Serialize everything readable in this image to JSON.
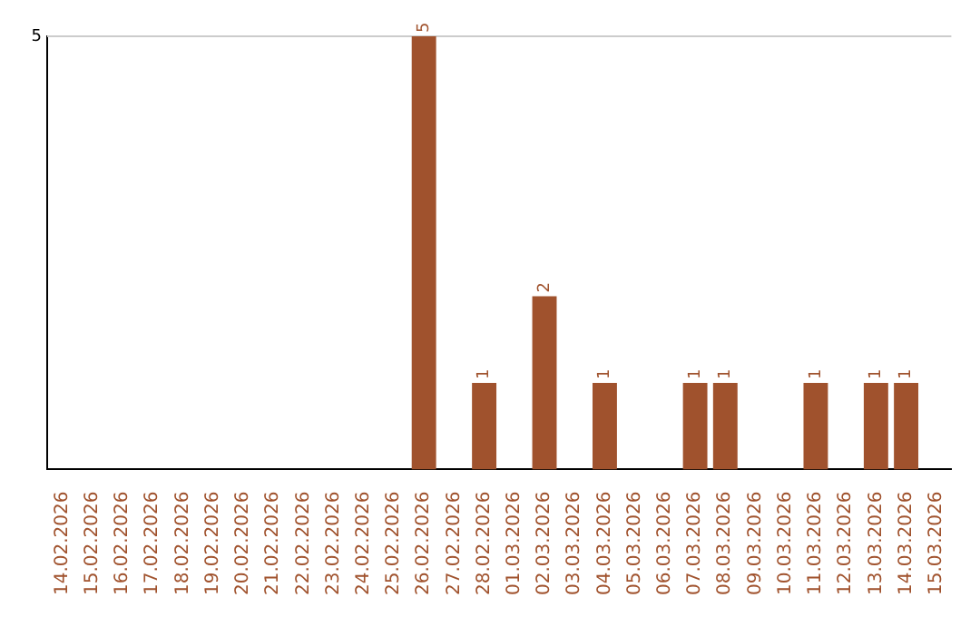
{
  "chart_data": {
    "type": "bar",
    "categories": [
      "14.02.2026",
      "15.02.2026",
      "16.02.2026",
      "17.02.2026",
      "18.02.2026",
      "19.02.2026",
      "20.02.2026",
      "21.02.2026",
      "22.02.2026",
      "23.02.2026",
      "24.02.2026",
      "25.02.2026",
      "26.02.2026",
      "27.02.2026",
      "28.02.2026",
      "01.03.2026",
      "02.03.2026",
      "03.03.2026",
      "04.03.2026",
      "05.03.2026",
      "06.03.2026",
      "07.03.2026",
      "08.03.2026",
      "09.03.2026",
      "10.03.2026",
      "11.03.2026",
      "12.03.2026",
      "13.03.2026",
      "14.03.2026",
      "15.03.2026"
    ],
    "values": [
      null,
      null,
      null,
      null,
      null,
      null,
      null,
      null,
      null,
      null,
      null,
      null,
      5,
      null,
      1,
      null,
      2,
      null,
      1,
      null,
      null,
      1,
      1,
      null,
      null,
      1,
      null,
      1,
      1,
      null
    ],
    "data_labels": true,
    "color": "#a0522d",
    "ylim": [
      0,
      5
    ],
    "ref_lines": [
      {
        "axis": "y",
        "value": 5,
        "color": "#cccccc"
      }
    ],
    "annotations": [
      "5"
    ]
  }
}
